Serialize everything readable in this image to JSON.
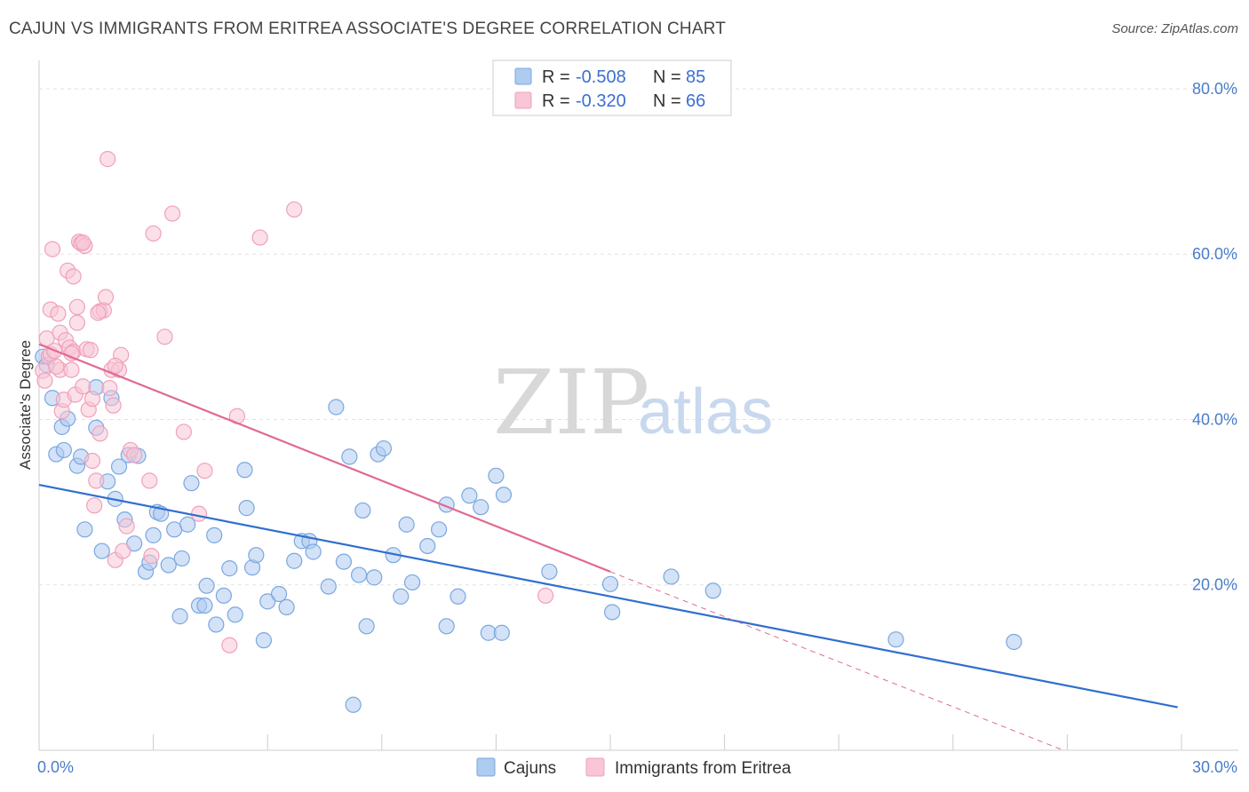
{
  "title": "CAJUN VS IMMIGRANTS FROM ERITREA ASSOCIATE'S DEGREE CORRELATION CHART",
  "source": "Source: ZipAtlas.com",
  "watermark": {
    "zip": "ZIP",
    "atlas": "atlas"
  },
  "chart_data": {
    "type": "scatter",
    "ylabel": "Associate's Degree",
    "xlim": [
      0,
      30
    ],
    "ylim": [
      0,
      83
    ],
    "x_tick_labels": [
      {
        "value": 0,
        "label": "0.0%"
      },
      {
        "value": 30,
        "label": "30.0%"
      }
    ],
    "y_tick_labels": [
      {
        "value": 20,
        "label": "20.0%"
      },
      {
        "value": 40,
        "label": "40.0%"
      },
      {
        "value": 60,
        "label": "60.0%"
      },
      {
        "value": 80,
        "label": "80.0%"
      }
    ],
    "x_minor_ticks": [
      0,
      3,
      6,
      9,
      12,
      15,
      18,
      21,
      24,
      27,
      30
    ],
    "grid": true,
    "legend": {
      "placement": "top-center",
      "entries": [
        {
          "r_label": "R = ",
          "r_value": "-0.508",
          "n_label": "N = ",
          "n_value": "85"
        },
        {
          "r_label": "R = ",
          "r_value": "-0.320",
          "n_label": "N = ",
          "n_value": "66"
        }
      ]
    },
    "series": [
      {
        "name": "Cajuns",
        "color": "#7aa7e0",
        "fill": "#aecbf0",
        "line_color": "#2f6fcf",
        "trend": {
          "x0": 0,
          "y0": 32.1,
          "x1": 29.9,
          "y1": 5.2
        },
        "points": [
          [
            0.1,
            47.6
          ],
          [
            0.2,
            46.6
          ],
          [
            0.35,
            42.6
          ],
          [
            0.45,
            35.8
          ],
          [
            0.6,
            39.1
          ],
          [
            0.65,
            36.3
          ],
          [
            0.75,
            40.1
          ],
          [
            1.0,
            34.4
          ],
          [
            1.1,
            35.5
          ],
          [
            1.2,
            26.7
          ],
          [
            1.5,
            43.9
          ],
          [
            1.5,
            39.0
          ],
          [
            1.65,
            24.1
          ],
          [
            1.8,
            32.5
          ],
          [
            1.9,
            42.6
          ],
          [
            2.0,
            30.4
          ],
          [
            2.1,
            34.3
          ],
          [
            2.25,
            27.9
          ],
          [
            2.35,
            35.7
          ],
          [
            2.5,
            25.0
          ],
          [
            2.6,
            35.6
          ],
          [
            2.8,
            21.6
          ],
          [
            2.9,
            22.7
          ],
          [
            3.0,
            26.0
          ],
          [
            3.1,
            28.8
          ],
          [
            3.2,
            28.6
          ],
          [
            3.4,
            22.4
          ],
          [
            3.55,
            26.7
          ],
          [
            3.7,
            16.2
          ],
          [
            3.75,
            23.2
          ],
          [
            3.9,
            27.3
          ],
          [
            4.0,
            32.3
          ],
          [
            4.2,
            17.5
          ],
          [
            4.35,
            17.5
          ],
          [
            4.4,
            19.9
          ],
          [
            4.6,
            26.0
          ],
          [
            4.65,
            15.2
          ],
          [
            4.85,
            18.7
          ],
          [
            5.0,
            22.0
          ],
          [
            5.15,
            16.4
          ],
          [
            5.4,
            33.9
          ],
          [
            5.45,
            29.3
          ],
          [
            5.6,
            22.1
          ],
          [
            5.7,
            23.6
          ],
          [
            5.9,
            13.3
          ],
          [
            6.0,
            18.0
          ],
          [
            6.3,
            18.9
          ],
          [
            6.5,
            17.3
          ],
          [
            6.7,
            22.9
          ],
          [
            6.9,
            25.3
          ],
          [
            7.1,
            25.3
          ],
          [
            7.2,
            24.0
          ],
          [
            7.6,
            19.8
          ],
          [
            7.8,
            41.5
          ],
          [
            8.0,
            22.8
          ],
          [
            8.15,
            35.5
          ],
          [
            8.4,
            21.2
          ],
          [
            8.5,
            29.0
          ],
          [
            8.6,
            15.0
          ],
          [
            8.8,
            20.9
          ],
          [
            8.9,
            35.8
          ],
          [
            9.05,
            36.5
          ],
          [
            9.3,
            23.6
          ],
          [
            9.5,
            18.6
          ],
          [
            9.65,
            27.3
          ],
          [
            9.8,
            20.3
          ],
          [
            10.2,
            24.7
          ],
          [
            10.5,
            26.7
          ],
          [
            10.7,
            29.7
          ],
          [
            10.7,
            15.0
          ],
          [
            11.0,
            18.6
          ],
          [
            11.3,
            30.8
          ],
          [
            11.6,
            29.4
          ],
          [
            11.8,
            14.2
          ],
          [
            12.0,
            33.2
          ],
          [
            12.15,
            14.2
          ],
          [
            12.2,
            30.9
          ],
          [
            13.4,
            21.6
          ],
          [
            15.0,
            20.1
          ],
          [
            15.05,
            16.7
          ],
          [
            16.6,
            21.0
          ],
          [
            17.7,
            19.3
          ],
          [
            22.5,
            13.4
          ],
          [
            25.6,
            13.1
          ],
          [
            8.25,
            5.5
          ]
        ]
      },
      {
        "name": "Immigrants from Eritrea",
        "color": "#f0a0bb",
        "fill": "#f8c6d6",
        "line_color": "#e06a93",
        "trend": {
          "x0": 0,
          "y0": 49.1,
          "x1": 15.0,
          "y1": 21.6
        },
        "trend_ext": {
          "x0": 15.0,
          "y0": 21.6,
          "x1": 26.9,
          "y1": 0.0
        },
        "points": [
          [
            0.1,
            45.9
          ],
          [
            0.15,
            44.7
          ],
          [
            0.2,
            49.8
          ],
          [
            0.25,
            47.6
          ],
          [
            0.3,
            47.9
          ],
          [
            0.3,
            53.3
          ],
          [
            0.35,
            60.6
          ],
          [
            0.4,
            48.3
          ],
          [
            0.5,
            52.8
          ],
          [
            0.55,
            50.5
          ],
          [
            0.55,
            46.0
          ],
          [
            0.6,
            41.0
          ],
          [
            0.65,
            42.4
          ],
          [
            0.7,
            49.6
          ],
          [
            0.75,
            58.0
          ],
          [
            0.8,
            48.7
          ],
          [
            0.85,
            46.0
          ],
          [
            0.9,
            57.3
          ],
          [
            0.9,
            48.2
          ],
          [
            0.95,
            43.0
          ],
          [
            1.0,
            53.6
          ],
          [
            1.0,
            51.7
          ],
          [
            1.05,
            61.5
          ],
          [
            1.1,
            61.3
          ],
          [
            1.15,
            44.0
          ],
          [
            1.2,
            61.0
          ],
          [
            1.25,
            48.5
          ],
          [
            1.3,
            41.2
          ],
          [
            1.35,
            48.4
          ],
          [
            1.4,
            35.0
          ],
          [
            1.4,
            42.5
          ],
          [
            1.45,
            29.6
          ],
          [
            1.5,
            32.6
          ],
          [
            1.6,
            38.3
          ],
          [
            1.6,
            53.1
          ],
          [
            1.7,
            53.2
          ],
          [
            1.75,
            54.8
          ],
          [
            1.8,
            71.5
          ],
          [
            1.9,
            46.0
          ],
          [
            1.95,
            41.7
          ],
          [
            2.0,
            23.0
          ],
          [
            2.1,
            46.0
          ],
          [
            2.15,
            47.8
          ],
          [
            2.2,
            24.1
          ],
          [
            2.3,
            27.1
          ],
          [
            2.4,
            36.3
          ],
          [
            2.5,
            35.7
          ],
          [
            2.9,
            32.6
          ],
          [
            2.95,
            23.5
          ],
          [
            3.0,
            62.5
          ],
          [
            3.3,
            50.0
          ],
          [
            3.5,
            64.9
          ],
          [
            3.8,
            38.5
          ],
          [
            4.2,
            28.6
          ],
          [
            4.35,
            33.8
          ],
          [
            5.0,
            12.7
          ],
          [
            5.2,
            40.4
          ],
          [
            5.8,
            62.0
          ],
          [
            6.7,
            65.4
          ],
          [
            13.3,
            18.7
          ],
          [
            0.45,
            46.4
          ],
          [
            0.85,
            48.0
          ],
          [
            1.15,
            61.4
          ],
          [
            1.55,
            52.9
          ],
          [
            1.85,
            43.8
          ],
          [
            2.0,
            46.5
          ]
        ]
      }
    ]
  }
}
